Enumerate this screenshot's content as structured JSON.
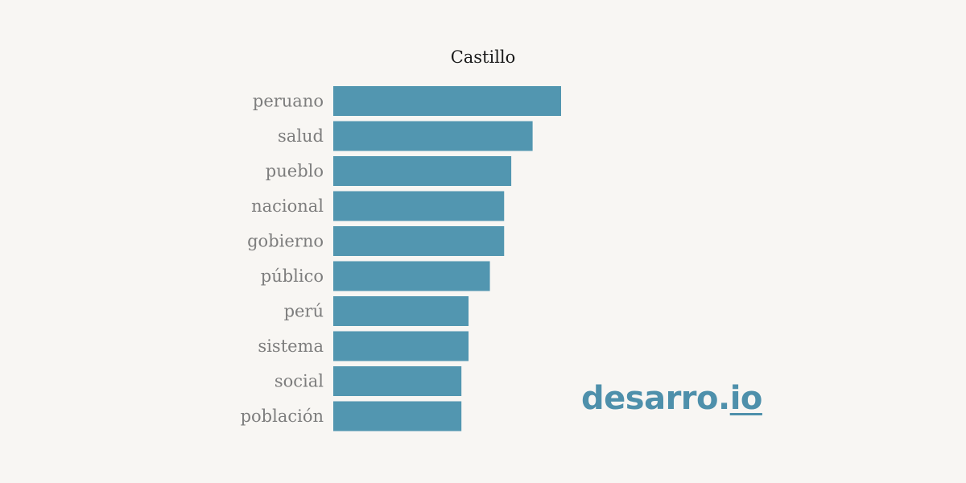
{
  "chart_data": {
    "type": "bar",
    "orientation": "horizontal",
    "title": "Castillo",
    "categories": [
      "peruano",
      "salud",
      "pueblo",
      "nacional",
      "gobierno",
      "público",
      "perú",
      "sistema",
      "social",
      "población"
    ],
    "values": [
      32,
      28,
      25,
      24,
      24,
      22,
      19,
      19,
      18,
      18
    ],
    "xlabel": "",
    "ylabel": "",
    "xlim": [
      0,
      32
    ],
    "grid": false,
    "legend": "none",
    "bar_color": "#5296b0"
  },
  "brand": {
    "name": "desarro",
    "dot": ".",
    "suffix": "io",
    "color": "#4e90ab"
  }
}
